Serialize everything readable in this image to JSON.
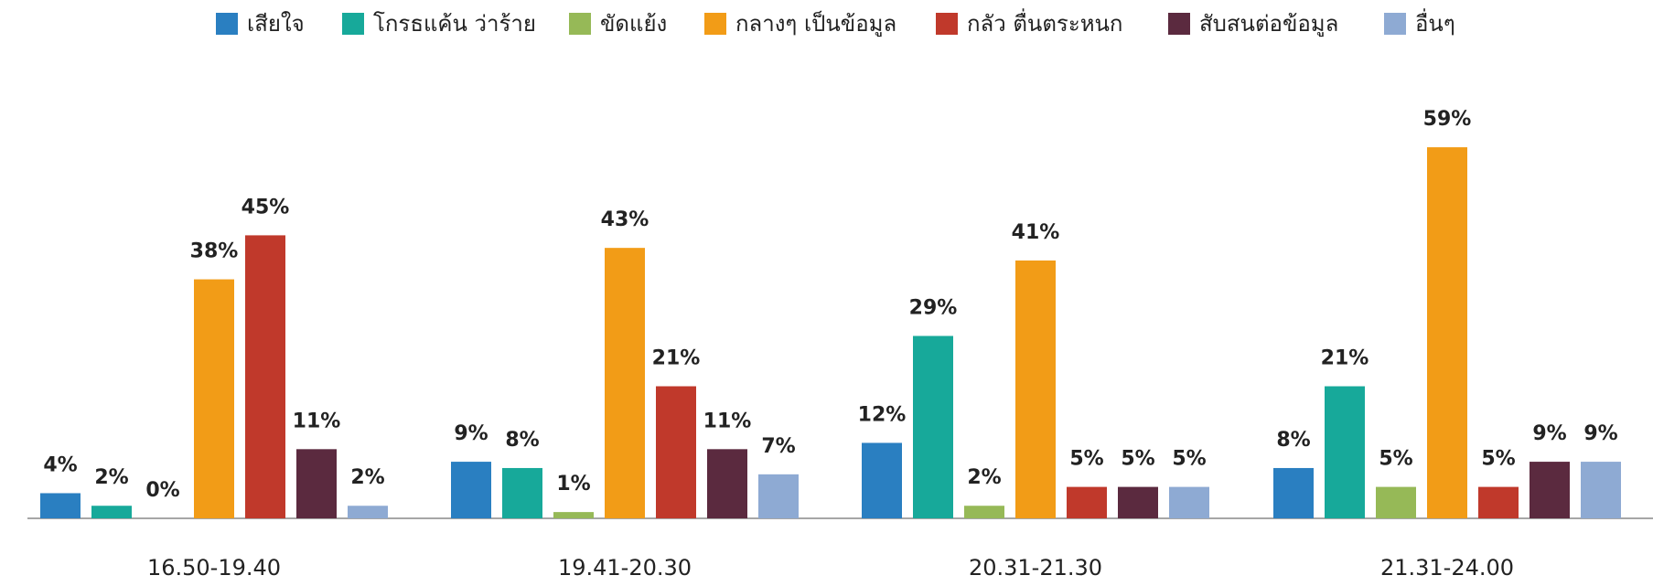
{
  "chart_data": {
    "type": "bar",
    "categories": [
      "16.50-19.40",
      "19.41-20.30",
      "20.31-21.30",
      "21.31-24.00"
    ],
    "series": [
      {
        "name": "เสียใจ",
        "color": "#2a7fc1",
        "values": [
          4,
          9,
          12,
          8
        ],
        "value_labels": [
          "4%",
          "9%",
          "12%",
          "8%"
        ]
      },
      {
        "name": "โกรธแค้น ว่าร้าย",
        "color": "#17a99a",
        "values": [
          2,
          8,
          29,
          21
        ],
        "value_labels": [
          "2%",
          "8%",
          "29%",
          "21%"
        ]
      },
      {
        "name": "ขัดแย้ง",
        "color": "#96b957",
        "values": [
          0,
          1,
          2,
          5
        ],
        "value_labels": [
          "0%",
          "1%",
          "2%",
          "5%"
        ]
      },
      {
        "name": "กลางๆ เป็นข้อมูล",
        "color": "#f29c17",
        "values": [
          38,
          43,
          41,
          59
        ],
        "value_labels": [
          "38%",
          "43%",
          "41%",
          "59%"
        ]
      },
      {
        "name": "กลัว ตื่นตระหนก",
        "color": "#c0392b",
        "values": [
          45,
          21,
          5,
          5
        ],
        "value_labels": [
          "45%",
          "21%",
          "5%",
          "5%"
        ]
      },
      {
        "name": "สับสนต่อข้อมูล",
        "color": "#5b2a3f",
        "values": [
          11,
          11,
          5,
          9
        ],
        "value_labels": [
          "11%",
          "11%",
          "5%",
          "9%"
        ]
      },
      {
        "name": "อื่นๆ",
        "color": "#8eaad3",
        "values": [
          2,
          7,
          5,
          9
        ],
        "value_labels": [
          "2%",
          "7%",
          "5%",
          "9%"
        ]
      }
    ]
  }
}
